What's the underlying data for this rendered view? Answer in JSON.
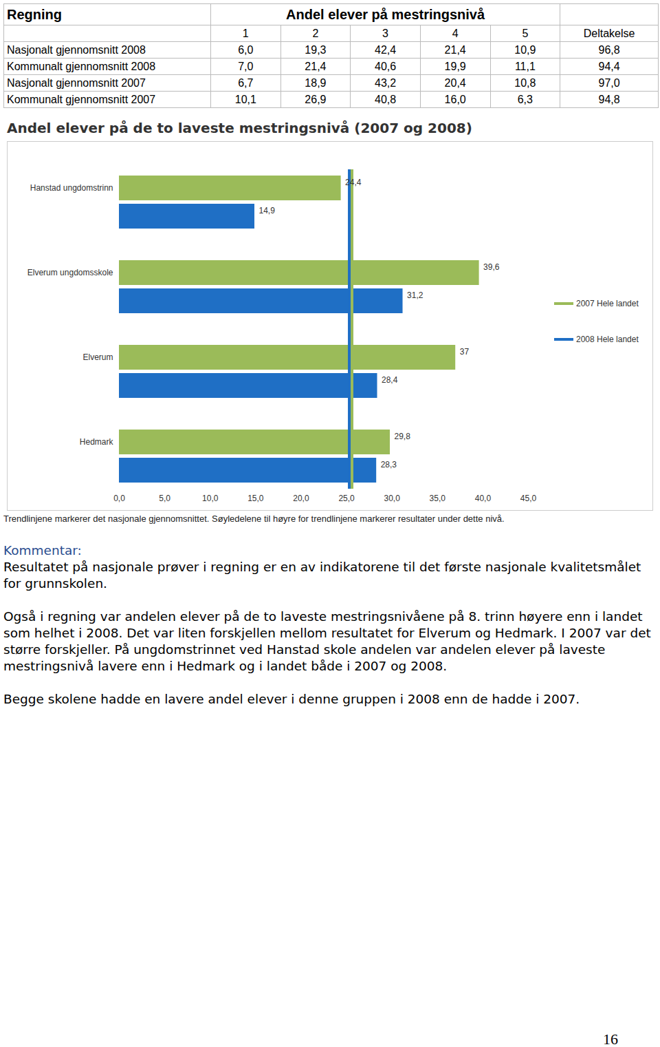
{
  "table": {
    "title": "Regning",
    "header_title": "Andel elever på mestringsnivå",
    "columns": [
      "1",
      "2",
      "3",
      "4",
      "5",
      "Deltakelse"
    ],
    "rows": [
      [
        "Nasjonalt gjennomsnitt 2008",
        "6,0",
        "19,3",
        "42,4",
        "21,4",
        "10,9",
        "96,8"
      ],
      [
        "Kommunalt gjennomsnitt 2008",
        "7,0",
        "21,4",
        "40,6",
        "19,9",
        "11,1",
        "94,4"
      ],
      [
        "Nasjonalt gjennomsnitt 2007",
        "6,7",
        "18,9",
        "43,2",
        "20,4",
        "10,8",
        "97,0"
      ],
      [
        "Kommunalt gjennomsnitt 2007",
        "10,1",
        "26,9",
        "40,8",
        "16,0",
        "6,3",
        "94,8"
      ]
    ]
  },
  "chart_data": {
    "type": "bar",
    "title": "Andel elever på de to laveste mestringsnivå (2007 og 2008)",
    "orientation": "horizontal",
    "categories": [
      "Hanstad ungdomstrinn",
      "Elverum ungdomsskole",
      "Elverum",
      "Hedmark"
    ],
    "series": [
      {
        "name": "2007 Hele landet",
        "color": "#9bbb59",
        "values": [
          24.4,
          39.6,
          37,
          29.8
        ],
        "value_labels": [
          "24,4",
          "39,6",
          "37",
          "29,8"
        ],
        "trend": 25.6
      },
      {
        "name": "2008 Hele landet",
        "color": "#1f6fc5",
        "values": [
          14.9,
          31.2,
          28.4,
          28.3
        ],
        "value_labels": [
          "14,9",
          "31,2",
          "28,4",
          "28,3"
        ],
        "trend": 25.3
      }
    ],
    "xlim": [
      0,
      45
    ],
    "xticks": [
      {
        "value": 0,
        "label": "0,0"
      },
      {
        "value": 5,
        "label": "5,0"
      },
      {
        "value": 10,
        "label": "10,0"
      },
      {
        "value": 15,
        "label": "15,0"
      },
      {
        "value": 20,
        "label": "20,0"
      },
      {
        "value": 25,
        "label": "25,0"
      },
      {
        "value": 30,
        "label": "30,0"
      },
      {
        "value": 35,
        "label": "35,0"
      },
      {
        "value": 40,
        "label": "40,0"
      },
      {
        "value": 45,
        "label": "45,0"
      }
    ],
    "data_labels": true,
    "legend": "right",
    "grid": false
  },
  "caption": "Trendlinjene markerer det nasjonale gjennomsnittet. Søyledelene til høyre for trendlinjene markerer resultater under dette nivå.",
  "commentary": {
    "heading": "Kommentar:",
    "paragraphs": [
      "Resultatet på nasjonale prøver i regning er en av indikatorene til det første nasjonale kvalitetsmålet for grunnskolen.",
      "Også i regning var andelen elever på de to laveste mestringsnivåene på 8. trinn høyere enn i landet som helhet i 2008. Det var liten forskjellen mellom resultatet for Elverum og Hedmark. I 2007 var det større forskjeller. På ungdomstrinnet ved Hanstad skole andelen var andelen elever på laveste mestringsnivå lavere enn i Hedmark og i landet både i 2007 og 2008.",
      "Begge skolene hadde en lavere andel elever i denne gruppen i 2008 enn de hadde i 2007."
    ]
  },
  "page_number": "16"
}
